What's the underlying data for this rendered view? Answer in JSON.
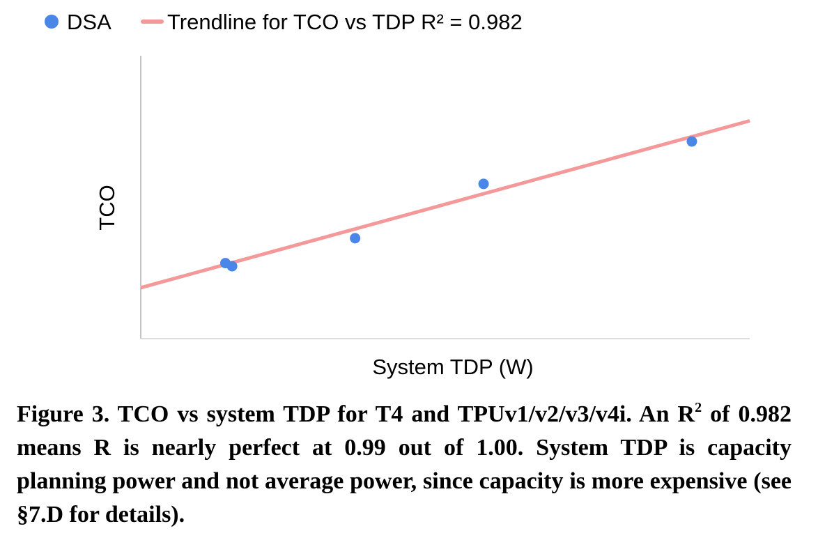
{
  "chart_data": {
    "type": "scatter",
    "xlabel": "System TDP (W)",
    "ylabel": "TCO",
    "xlim": [
      0,
      1
    ],
    "ylim": [
      0,
      1
    ],
    "grid": false,
    "legend_placement": "top",
    "series": [
      {
        "name": "DSA",
        "color": "#4a86e8",
        "points": [
          {
            "x": 0.139,
            "y": 0.267
          },
          {
            "x": 0.15,
            "y": 0.256
          },
          {
            "x": 0.352,
            "y": 0.355
          },
          {
            "x": 0.563,
            "y": 0.547
          },
          {
            "x": 0.905,
            "y": 0.697
          }
        ]
      }
    ],
    "trendline": {
      "name": "Trendline for TCO vs TDP R² = 0.982",
      "color": "#f4999a",
      "x": [
        0,
        1
      ],
      "y": [
        0.18,
        0.77
      ]
    }
  },
  "caption": {
    "part1": "Figure 3. TCO vs system TDP for T4 and TPUv1/v2/v3/v4i. An R",
    "sup": "2",
    "part2": " of 0.982 means R is nearly perfect at 0.99 out of 1.00. System TDP is capacity planning power and not average power, since capacity is more expensive (see §7.D for details)."
  }
}
